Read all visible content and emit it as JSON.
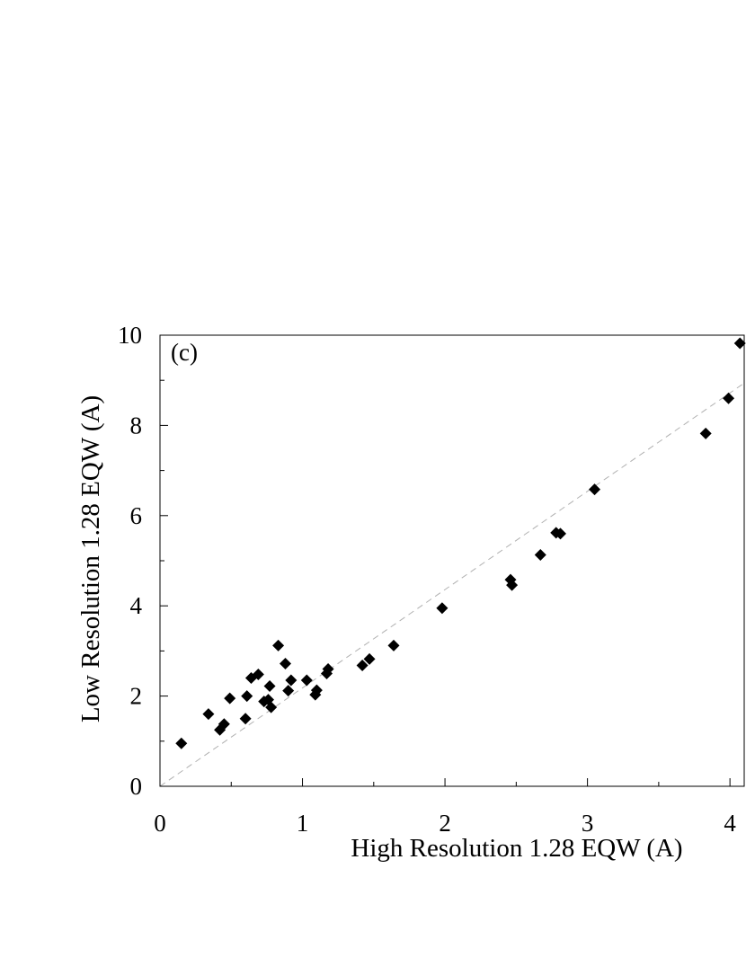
{
  "chart_data": {
    "type": "scatter",
    "panel_label": "(c)",
    "title": "",
    "xlabel": "High Resolution 1.28 EQW (A)",
    "ylabel": "Low Resolution 1.28 EQW (A)",
    "xlim": [
      0,
      4.1
    ],
    "ylim": [
      0,
      10
    ],
    "x_ticks": [
      0,
      1,
      2,
      3,
      4
    ],
    "y_ticks": [
      0,
      2,
      4,
      6,
      8,
      10
    ],
    "x_tick_labels": [
      "0",
      "1",
      "2",
      "3",
      "4"
    ],
    "y_tick_labels": [
      "0",
      "2",
      "4",
      "6",
      "8",
      "10"
    ],
    "grid": false,
    "marker": "diamond",
    "marker_color": "#000000",
    "reference_line": {
      "style": "dashed",
      "color": "#b0b0b0",
      "slope": 2.18,
      "intercept": 0
    },
    "points": [
      [
        0.15,
        0.95
      ],
      [
        0.34,
        1.6
      ],
      [
        0.42,
        1.25
      ],
      [
        0.45,
        1.38
      ],
      [
        0.49,
        1.95
      ],
      [
        0.6,
        1.5
      ],
      [
        0.61,
        2.0
      ],
      [
        0.64,
        2.4
      ],
      [
        0.69,
        2.48
      ],
      [
        0.73,
        1.88
      ],
      [
        0.76,
        1.92
      ],
      [
        0.77,
        2.22
      ],
      [
        0.78,
        1.75
      ],
      [
        0.83,
        3.12
      ],
      [
        0.88,
        2.72
      ],
      [
        0.9,
        2.12
      ],
      [
        0.92,
        2.35
      ],
      [
        1.03,
        2.35
      ],
      [
        1.09,
        2.03
      ],
      [
        1.1,
        2.13
      ],
      [
        1.17,
        2.5
      ],
      [
        1.18,
        2.6
      ],
      [
        1.42,
        2.68
      ],
      [
        1.47,
        2.82
      ],
      [
        1.64,
        3.12
      ],
      [
        1.98,
        3.95
      ],
      [
        2.46,
        4.58
      ],
      [
        2.47,
        4.46
      ],
      [
        2.67,
        5.13
      ],
      [
        2.78,
        5.62
      ],
      [
        2.81,
        5.6
      ],
      [
        3.05,
        6.58
      ],
      [
        3.83,
        7.82
      ],
      [
        3.99,
        8.6
      ],
      [
        4.07,
        9.82
      ]
    ]
  }
}
